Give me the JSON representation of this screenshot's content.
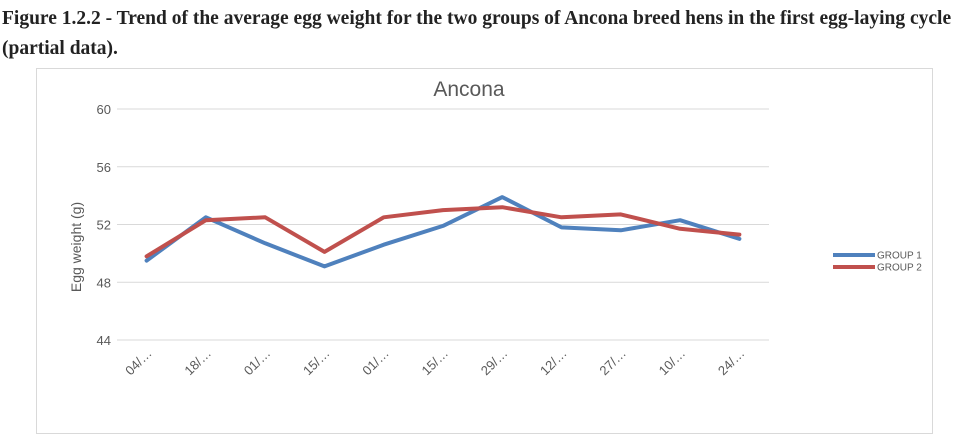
{
  "caption": "Figure 1.2.2 - Trend of the average egg weight for the two groups of Ancona breed hens in the first egg-laying cycle (partial data).",
  "chart_data": {
    "type": "line",
    "title": "Ancona",
    "xlabel": "",
    "ylabel": "Egg weight (g)",
    "ylim": [
      44,
      60
    ],
    "yticks": [
      44,
      48,
      52,
      56,
      60
    ],
    "grid": true,
    "legend_position": "right",
    "categories": [
      "04/…",
      "18/…",
      "01/…",
      "15/…",
      "01/…",
      "15/…",
      "29/…",
      "12/…",
      "27/…",
      "10/…",
      "24/…"
    ],
    "series": [
      {
        "name": "GROUP 1",
        "color": "#4f81bd",
        "values": [
          49.5,
          52.5,
          50.7,
          49.1,
          50.6,
          51.9,
          53.9,
          51.8,
          51.6,
          52.3,
          51.0
        ]
      },
      {
        "name": "GROUP 2",
        "color": "#c0504d",
        "values": [
          49.8,
          52.3,
          52.5,
          50.1,
          52.5,
          53.0,
          53.2,
          52.5,
          52.7,
          51.7,
          51.3
        ]
      }
    ]
  }
}
